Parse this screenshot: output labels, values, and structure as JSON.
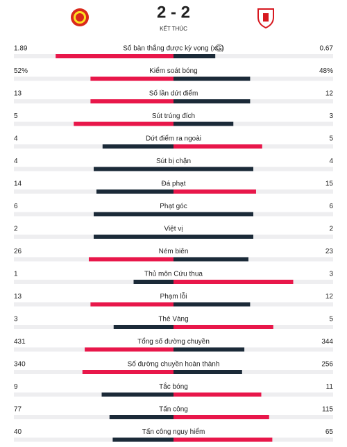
{
  "header": {
    "score": "2 - 2",
    "status": "KẾT THÚC"
  },
  "stats": [
    {
      "label": "Số bàn thắng được kỳ vọng (xG)",
      "home": 1.89,
      "away": 0.67
    },
    {
      "label": "Kiểm soát bóng",
      "home": 52,
      "away": 48,
      "home_label": "52%",
      "away_label": "48%"
    },
    {
      "label": "Số lần dứt điểm",
      "home": 13,
      "away": 12
    },
    {
      "label": "Sút trúng đích",
      "home": 5,
      "away": 3
    },
    {
      "label": "Dứt điểm ra ngoài",
      "home": 4,
      "away": 5
    },
    {
      "label": "Sút bị chặn",
      "home": 4,
      "away": 4
    },
    {
      "label": "Đá phạt",
      "home": 14,
      "away": 15
    },
    {
      "label": "Phạt góc",
      "home": 6,
      "away": 6
    },
    {
      "label": "Việt vị",
      "home": 2,
      "away": 2
    },
    {
      "label": "Ném biên",
      "home": 26,
      "away": 23
    },
    {
      "label": "Thủ môn Cứu thua",
      "home": 1,
      "away": 3
    },
    {
      "label": "Phạm lỗi",
      "home": 13,
      "away": 12
    },
    {
      "label": "Thẻ Vàng",
      "home": 3,
      "away": 5
    },
    {
      "label": "Tổng số đường chuyền",
      "home": 431,
      "away": 344
    },
    {
      "label": "Số đường chuyền hoàn thành",
      "home": 340,
      "away": 256
    },
    {
      "label": "Tắc bóng",
      "home": 9,
      "away": 11
    },
    {
      "label": "Tấn công",
      "home": 77,
      "away": 115
    },
    {
      "label": "Tấn công nguy hiểm",
      "home": 40,
      "away": 65
    }
  ]
}
